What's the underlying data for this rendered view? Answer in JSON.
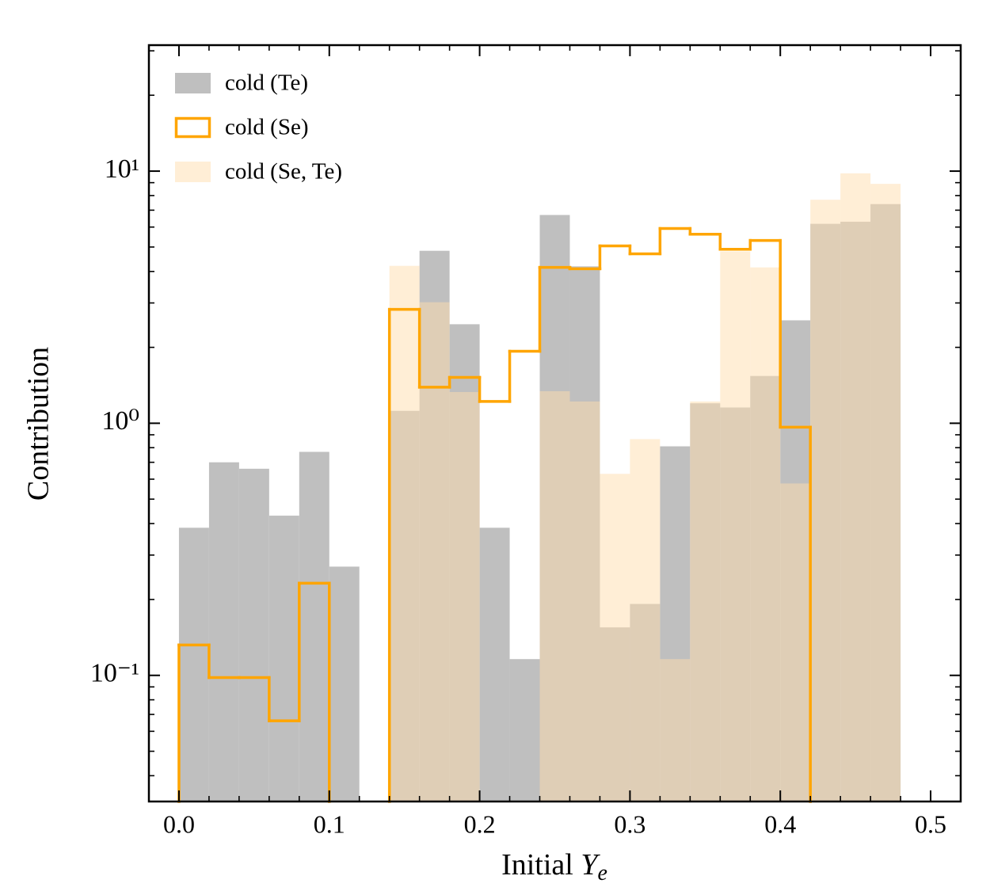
{
  "chart_data": {
    "type": "histogram",
    "xlabel": "Initial Y_e",
    "ylabel": "Contribution",
    "bins": [
      0,
      0.02,
      0.04,
      0.06,
      0.08,
      0.1,
      0.12,
      0.14,
      0.16,
      0.18,
      0.2,
      0.22,
      0.24,
      0.26,
      0.28,
      0.3,
      0.32,
      0.34,
      0.36,
      0.38,
      0.4,
      0.42,
      0.44,
      0.46,
      0.48
    ],
    "series": [
      {
        "name": "cold (Te)",
        "style": "fill",
        "color": "#bfbfbf",
        "alpha": 1,
        "values": [
          0.385,
          0.7,
          0.66,
          0.43,
          0.77,
          0.27,
          null,
          1.12,
          4.83,
          2.47,
          0.385,
          0.116,
          6.7,
          4.19,
          0.155,
          0.192,
          0.81,
          1.2,
          1.155,
          1.54,
          2.56,
          6.18,
          6.3,
          7.4
        ]
      },
      {
        "name": "cold (Se)",
        "style": "step",
        "color": "#ffa500",
        "alpha": 1,
        "values": [
          0.132,
          0.098,
          0.098,
          0.066,
          0.232,
          null,
          null,
          2.83,
          1.39,
          1.52,
          1.22,
          1.93,
          4.15,
          4.1,
          5.05,
          4.7,
          5.92,
          5.62,
          4.9,
          5.31,
          0.965,
          null,
          null,
          null
        ]
      },
      {
        "name": "cold (Se, Te)",
        "style": "fill",
        "color": "#ffdead",
        "alpha": 0.5,
        "values": [
          null,
          null,
          null,
          null,
          null,
          null,
          null,
          4.21,
          3.02,
          1.33,
          null,
          null,
          1.34,
          1.22,
          0.63,
          0.865,
          0.116,
          1.22,
          4.8,
          4.15,
          0.577,
          7.7,
          9.8,
          8.9
        ]
      }
    ],
    "draw_order": [
      0,
      2,
      1
    ],
    "xlim": [
      -0.02,
      0.52
    ],
    "xticks": [
      {
        "value": 0,
        "label": "0.0"
      },
      0.1,
      0.2,
      0.3,
      0.4,
      0.5
    ],
    "ylim": [
      0.0316,
      31.6
    ],
    "yticks": [
      {
        "value": 0.1,
        "label": "10⁻¹"
      },
      {
        "value": 1,
        "label": "10⁰"
      },
      {
        "value": 10,
        "label": "10¹"
      }
    ],
    "log_y": true,
    "legend": "upper left"
  }
}
